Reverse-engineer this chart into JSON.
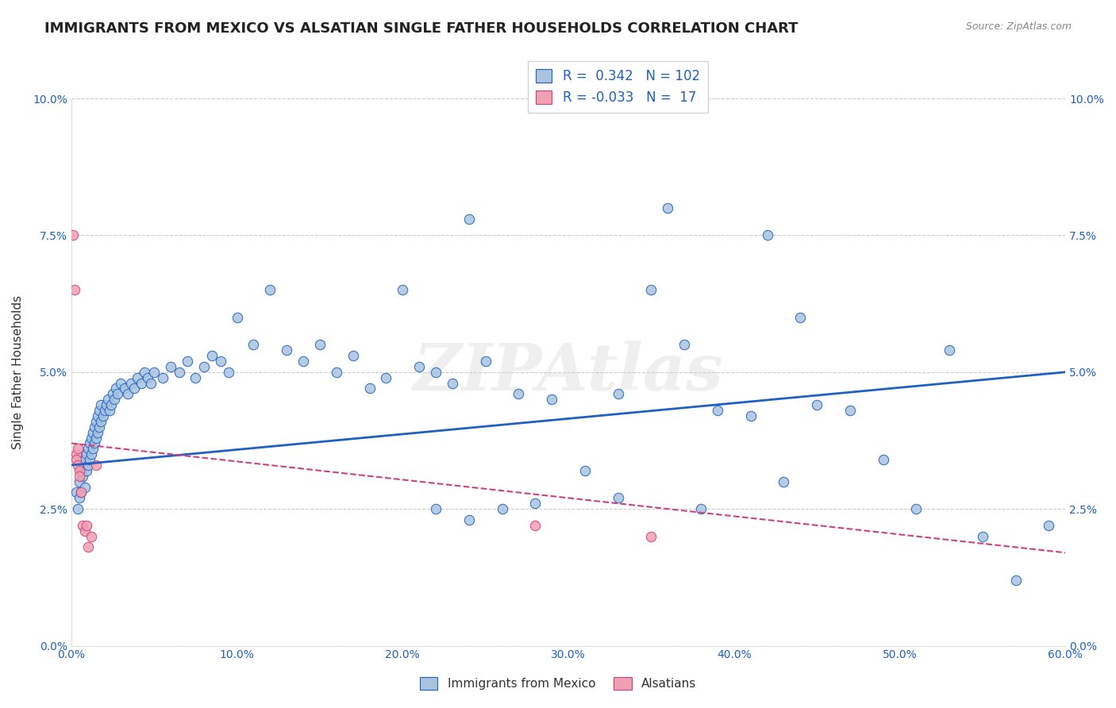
{
  "title": "IMMIGRANTS FROM MEXICO VS ALSATIAN SINGLE FATHER HOUSEHOLDS CORRELATION CHART",
  "source": "Source: ZipAtlas.com",
  "xlabel_ticks": [
    "0.0%",
    "10.0%",
    "20.0%",
    "30.0%",
    "40.0%",
    "50.0%",
    "60.0%"
  ],
  "xlabel_vals": [
    0.0,
    0.1,
    0.2,
    0.3,
    0.4,
    0.5,
    0.6
  ],
  "ylabel_ticks": [
    "0.0%",
    "2.5%",
    "5.0%",
    "7.5%",
    "10.0%"
  ],
  "ylabel_vals": [
    0.0,
    0.025,
    0.05,
    0.075,
    0.1
  ],
  "ylabel_label": "Single Father Households",
  "legend_labels": [
    "Immigrants from Mexico",
    "Alsatians"
  ],
  "R_blue": 0.342,
  "N_blue": 102,
  "R_pink": -0.033,
  "N_pink": 17,
  "blue_color": "#a8c4e0",
  "blue_line_color": "#2060c0",
  "pink_color": "#f0a0b0",
  "pink_line_color": "#d04080",
  "title_fontsize": 13,
  "axis_label_fontsize": 11,
  "tick_fontsize": 10,
  "watermark": "ZIPAtlas",
  "blue_scatter_x": [
    0.003,
    0.004,
    0.005,
    0.005,
    0.006,
    0.006,
    0.007,
    0.007,
    0.008,
    0.008,
    0.009,
    0.009,
    0.01,
    0.01,
    0.011,
    0.011,
    0.012,
    0.012,
    0.013,
    0.013,
    0.014,
    0.014,
    0.015,
    0.015,
    0.016,
    0.016,
    0.017,
    0.017,
    0.018,
    0.018,
    0.019,
    0.02,
    0.021,
    0.022,
    0.023,
    0.024,
    0.025,
    0.026,
    0.027,
    0.028,
    0.03,
    0.032,
    0.034,
    0.036,
    0.038,
    0.04,
    0.042,
    0.044,
    0.046,
    0.048,
    0.05,
    0.055,
    0.06,
    0.065,
    0.07,
    0.075,
    0.08,
    0.085,
    0.09,
    0.095,
    0.1,
    0.11,
    0.12,
    0.13,
    0.14,
    0.15,
    0.16,
    0.17,
    0.18,
    0.19,
    0.2,
    0.21,
    0.22,
    0.23,
    0.24,
    0.25,
    0.27,
    0.29,
    0.31,
    0.33,
    0.35,
    0.37,
    0.39,
    0.41,
    0.43,
    0.45,
    0.47,
    0.49,
    0.51,
    0.53,
    0.55,
    0.57,
    0.59,
    0.42,
    0.44,
    0.38,
    0.36,
    0.28,
    0.26,
    0.24,
    0.22,
    0.33
  ],
  "blue_scatter_y": [
    0.028,
    0.025,
    0.03,
    0.027,
    0.032,
    0.028,
    0.033,
    0.031,
    0.034,
    0.029,
    0.035,
    0.032,
    0.036,
    0.033,
    0.037,
    0.034,
    0.038,
    0.035,
    0.039,
    0.036,
    0.04,
    0.037,
    0.041,
    0.038,
    0.042,
    0.039,
    0.043,
    0.04,
    0.044,
    0.041,
    0.042,
    0.043,
    0.044,
    0.045,
    0.043,
    0.044,
    0.046,
    0.045,
    0.047,
    0.046,
    0.048,
    0.047,
    0.046,
    0.048,
    0.047,
    0.049,
    0.048,
    0.05,
    0.049,
    0.048,
    0.05,
    0.049,
    0.051,
    0.05,
    0.052,
    0.049,
    0.051,
    0.053,
    0.052,
    0.05,
    0.06,
    0.055,
    0.065,
    0.054,
    0.052,
    0.055,
    0.05,
    0.053,
    0.047,
    0.049,
    0.065,
    0.051,
    0.05,
    0.048,
    0.078,
    0.052,
    0.046,
    0.045,
    0.032,
    0.046,
    0.065,
    0.055,
    0.043,
    0.042,
    0.03,
    0.044,
    0.043,
    0.034,
    0.025,
    0.054,
    0.02,
    0.012,
    0.022,
    0.075,
    0.06,
    0.025,
    0.08,
    0.026,
    0.025,
    0.023,
    0.025,
    0.027
  ],
  "pink_scatter_x": [
    0.001,
    0.002,
    0.003,
    0.003,
    0.004,
    0.004,
    0.005,
    0.005,
    0.006,
    0.007,
    0.008,
    0.009,
    0.01,
    0.012,
    0.015,
    0.35,
    0.28
  ],
  "pink_scatter_y": [
    0.075,
    0.065,
    0.035,
    0.034,
    0.036,
    0.033,
    0.032,
    0.031,
    0.028,
    0.022,
    0.021,
    0.022,
    0.018,
    0.02,
    0.033,
    0.02,
    0.022
  ],
  "blue_line_x": [
    0.0,
    0.6
  ],
  "blue_line_y_start": 0.033,
  "blue_line_y_end": 0.05,
  "pink_line_x": [
    0.0,
    0.6
  ],
  "pink_line_y_start": 0.037,
  "pink_line_y_end": 0.017,
  "xlim": [
    0.0,
    0.6
  ],
  "ylim": [
    0.0,
    0.1
  ]
}
